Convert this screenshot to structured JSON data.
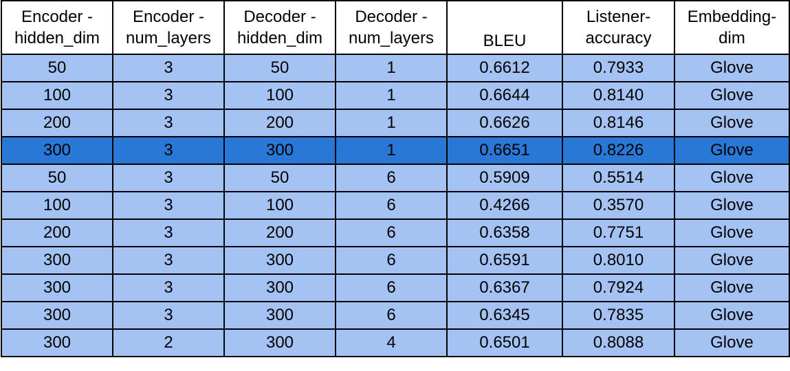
{
  "chart_data": {
    "type": "table",
    "columns": [
      "Encoder -\nhidden_dim",
      "Encoder -\nnum_layers",
      "Decoder -\nhidden_dim",
      "Decoder -\nnum_layers",
      "BLEU",
      "Listener-\naccuracy",
      "Embedding-\ndim"
    ],
    "rows": [
      [
        "50",
        "3",
        "50",
        "1",
        "0.6612",
        "0.7933",
        "Glove"
      ],
      [
        "100",
        "3",
        "100",
        "1",
        "0.6644",
        "0.8140",
        "Glove"
      ],
      [
        "200",
        "3",
        "200",
        "1",
        "0.6626",
        "0.8146",
        "Glove"
      ],
      [
        "300",
        "3",
        "300",
        "1",
        "0.6651",
        "0.8226",
        "Glove"
      ],
      [
        "50",
        "3",
        "50",
        "6",
        "0.5909",
        "0.5514",
        "Glove"
      ],
      [
        "100",
        "3",
        "100",
        "6",
        "0.4266",
        "0.3570",
        "Glove"
      ],
      [
        "200",
        "3",
        "200",
        "6",
        "0.6358",
        "0.7751",
        "Glove"
      ],
      [
        "300",
        "3",
        "300",
        "6",
        "0.6591",
        "0.8010",
        "Glove"
      ],
      [
        "300",
        "3",
        "300",
        "6",
        "0.6367",
        "0.7924",
        "Glove"
      ],
      [
        "300",
        "3",
        "300",
        "6",
        "0.6345",
        "0.7835",
        "Glove"
      ],
      [
        "300",
        "2",
        "300",
        "4",
        "0.6501",
        "0.8088",
        "Glove"
      ]
    ],
    "highlighted_row": 3
  },
  "colors": {
    "row_fill": "#a4c2f4",
    "highlight_fill": "#2a78d6",
    "border": "#000000",
    "header_fill": "#ffffff"
  }
}
